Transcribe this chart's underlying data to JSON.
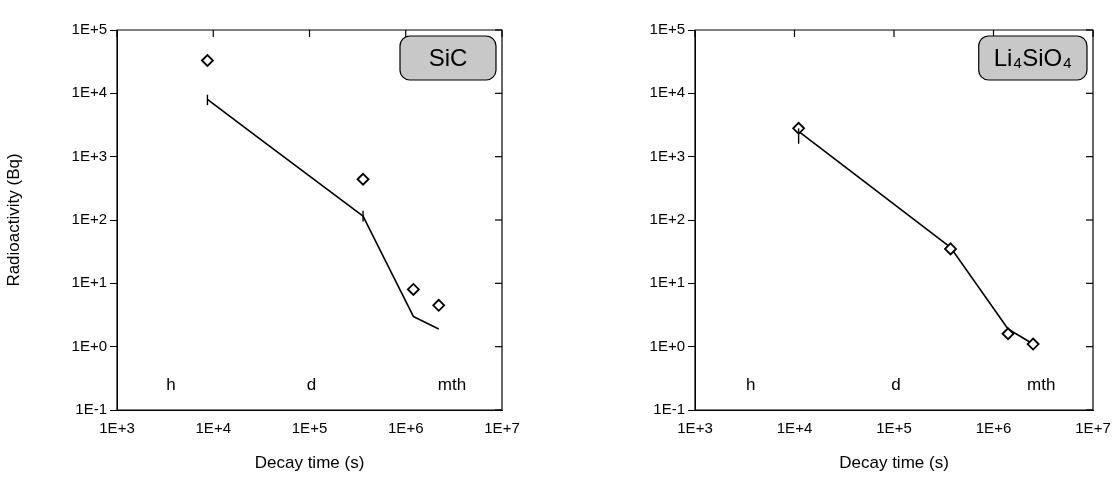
{
  "chart_data": [
    {
      "type": "scatter",
      "title": "SiC",
      "xlabel": "Decay time (s)",
      "ylabel": "Radioactivity (Bq)",
      "log": "xy",
      "grid": false,
      "legend": false,
      "xlim": [
        1000,
        10000000
      ],
      "xticks": [
        {
          "value": 1000,
          "label": "1E+3"
        },
        {
          "value": 10000,
          "label": "1E+4"
        },
        {
          "value": 100000,
          "label": "1E+5"
        },
        {
          "value": 1000000,
          "label": "1E+6"
        },
        {
          "value": 10000000,
          "label": "1E+7"
        }
      ],
      "ylim": [
        0.1,
        100000
      ],
      "yticks": [
        {
          "value": 0.1,
          "label": "1E-1"
        },
        {
          "value": 1,
          "label": "1E+0"
        },
        {
          "value": 10,
          "label": "1E+1"
        },
        {
          "value": 100,
          "label": "1E+2"
        },
        {
          "value": 1000,
          "label": "1E+3"
        },
        {
          "value": 10000,
          "label": "1E+4"
        },
        {
          "value": 100000,
          "label": "1E+5"
        }
      ],
      "series": [
        {
          "type": "scatter",
          "marker": "diamond",
          "color": "#000000",
          "x": [
            8700,
            360000,
            1200000,
            2200000
          ],
          "values": [
            33000,
            440,
            8,
            4.5
          ]
        },
        {
          "type": "line",
          "marker": "none",
          "color": "#000000",
          "x": [
            8700,
            360000,
            1200000,
            2200000
          ],
          "values": [
            8000,
            115,
            3,
            1.9
          ],
          "errors": [
            [
              6500,
              9500
            ],
            [
              95,
              140
            ],
            null,
            null
          ]
        }
      ],
      "annotations": [
        "h",
        "d",
        "mth"
      ]
    },
    {
      "type": "scatter",
      "title": "Li₄SiO₄",
      "xlabel": "Decay time (s)",
      "log": "xy",
      "grid": false,
      "legend": false,
      "xlim": [
        1000,
        10000000
      ],
      "xticks": [
        {
          "value": 1000,
          "label": "1E+3"
        },
        {
          "value": 10000,
          "label": "1E+4"
        },
        {
          "value": 100000,
          "label": "1E+5"
        },
        {
          "value": 1000000,
          "label": "1E+6"
        },
        {
          "value": 10000000,
          "label": "1E+7"
        }
      ],
      "ylim": [
        0.1,
        100000
      ],
      "yticks": [
        {
          "value": 0.1,
          "label": "1E-1"
        },
        {
          "value": 1,
          "label": "1E+0"
        },
        {
          "value": 10,
          "label": "1E+1"
        },
        {
          "value": 100,
          "label": "1E+2"
        },
        {
          "value": 1000,
          "label": "1E+3"
        },
        {
          "value": 10000,
          "label": "1E+4"
        },
        {
          "value": 100000,
          "label": "1E+5"
        }
      ],
      "series": [
        {
          "type": "scatter",
          "marker": "diamond",
          "color": "#000000",
          "x": [
            11000,
            370000,
            1400000,
            2500000
          ],
          "values": [
            2800,
            35,
            1.6,
            1.1
          ]
        },
        {
          "type": "line",
          "marker": "none",
          "color": "#000000",
          "x": [
            11000,
            370000,
            1400000,
            2500000
          ],
          "values": [
            2500,
            37,
            1.9,
            1.1
          ],
          "errors": [
            [
              1600,
              2800
            ],
            null,
            null,
            null
          ]
        }
      ],
      "annotations": [
        "h",
        "d",
        "mth"
      ]
    }
  ]
}
